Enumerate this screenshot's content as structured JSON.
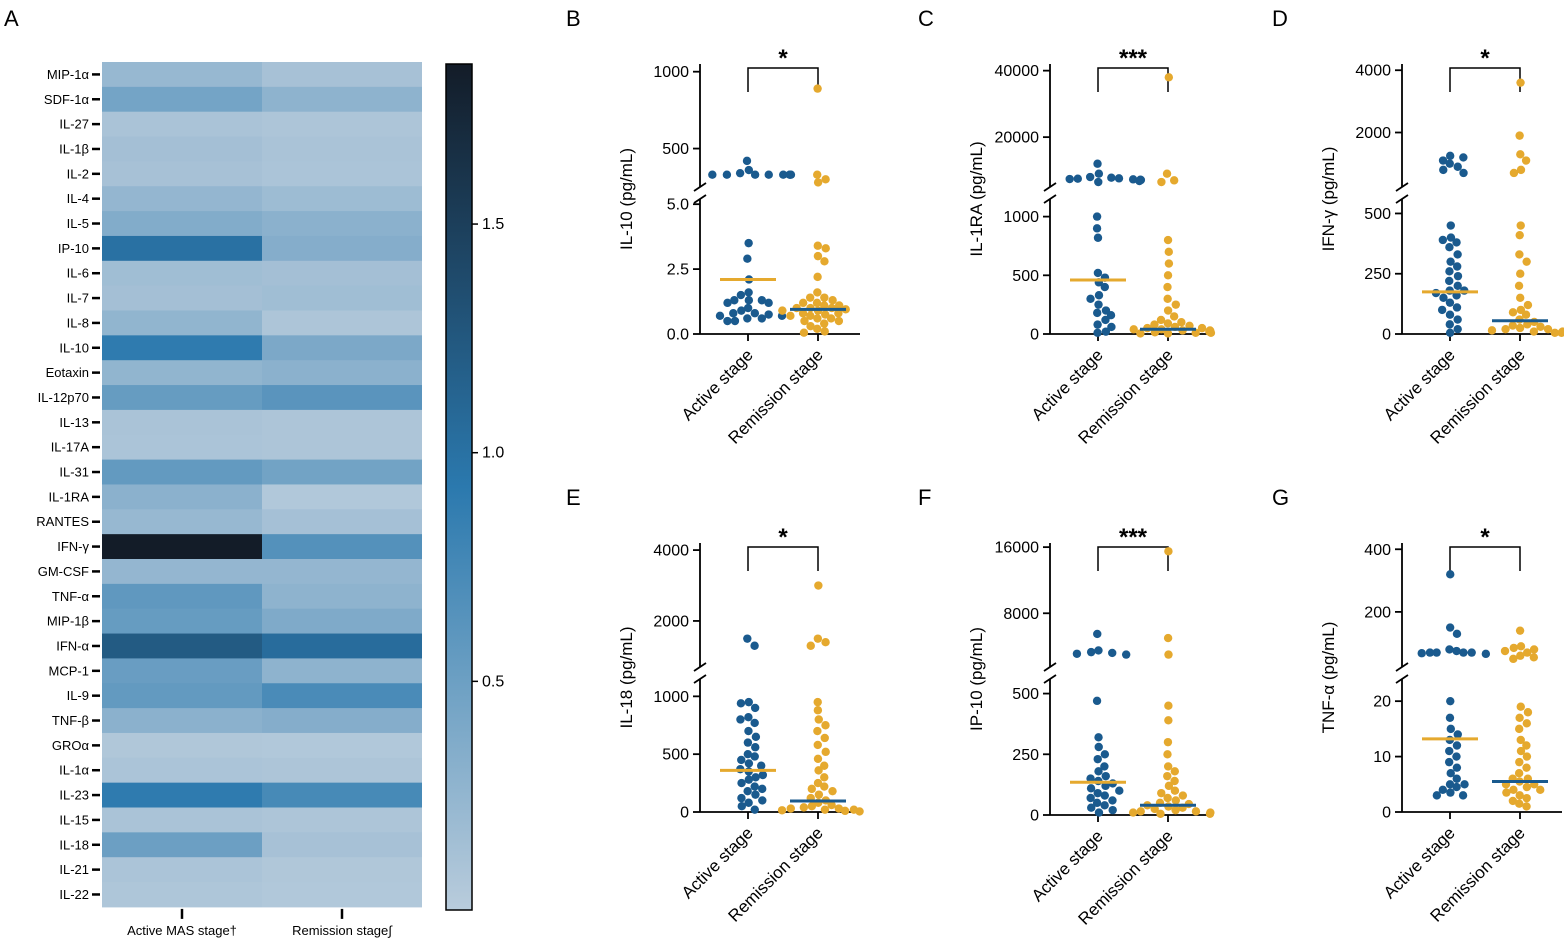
{
  "colors": {
    "active": "#1a5a8e",
    "remission": "#e5a92e",
    "heat_low": "#b9ccdc",
    "heat_mid": "#2b79ae",
    "heat_high": "#131c28"
  },
  "panel_a": {
    "label": "A",
    "chart_data": {
      "type": "heatmap",
      "rows": [
        "MIP-1α",
        "SDF-1α",
        "IL-27",
        "IL-1β",
        "IL-2",
        "IL-4",
        "IL-5",
        "IP-10",
        "IL-6",
        "IL-7",
        "IL-8",
        "IL-10",
        "Eotaxin",
        "IL-12p70",
        "IL-13",
        "IL-17A",
        "IL-31",
        "IL-1RA",
        "RANTES",
        "IFN-γ",
        "GM-CSF",
        "TNF-α",
        "MIP-1β",
        "IFN-α",
        "MCP-1",
        "IL-9",
        "TNF-β",
        "GROα",
        "IL-1α",
        "IL-23",
        "IL-15",
        "IL-18",
        "IL-21",
        "IL-22"
      ],
      "columns": [
        "Active MAS stage†",
        "Remission stage∫"
      ],
      "values": [
        [
          0.22,
          0.12
        ],
        [
          0.45,
          0.28
        ],
        [
          0.1,
          0.08
        ],
        [
          0.14,
          0.1
        ],
        [
          0.12,
          0.09
        ],
        [
          0.24,
          0.18
        ],
        [
          0.36,
          0.3
        ],
        [
          1.0,
          0.34
        ],
        [
          0.16,
          0.14
        ],
        [
          0.14,
          0.16
        ],
        [
          0.26,
          0.08
        ],
        [
          0.9,
          0.4
        ],
        [
          0.26,
          0.3
        ],
        [
          0.54,
          0.62
        ],
        [
          0.1,
          0.08
        ],
        [
          0.09,
          0.08
        ],
        [
          0.56,
          0.46
        ],
        [
          0.3,
          0.05
        ],
        [
          0.22,
          0.13
        ],
        [
          1.85,
          0.66
        ],
        [
          0.24,
          0.24
        ],
        [
          0.58,
          0.28
        ],
        [
          0.54,
          0.38
        ],
        [
          1.22,
          1.05
        ],
        [
          0.52,
          0.28
        ],
        [
          0.56,
          0.72
        ],
        [
          0.3,
          0.34
        ],
        [
          0.06,
          0.05
        ],
        [
          0.09,
          0.08
        ],
        [
          0.9,
          0.74
        ],
        [
          0.1,
          0.08
        ],
        [
          0.5,
          0.12
        ],
        [
          0.09,
          0.06
        ],
        [
          0.07,
          0.05
        ]
      ],
      "colorbar": {
        "range": [
          0.0,
          1.85
        ],
        "ticks": [
          0.5,
          1.0,
          1.5
        ],
        "tick_labels": [
          "0.5",
          "1.0",
          "1.5"
        ]
      }
    }
  },
  "panels": [
    {
      "label": "B",
      "chart_data": {
        "type": "scatter",
        "ylabel": "IL-10 (pg/mL)",
        "significance": "*",
        "x_labels": [
          "Active stage",
          "Remission stage"
        ],
        "y_segments": [
          {
            "min": 0,
            "max": 5.2,
            "ticks": [
              0,
              2.5,
              5.0
            ],
            "tick_labels": [
              "0.0",
              "2.5",
              "5.0"
            ]
          },
          {
            "min": 250,
            "max": 1050,
            "ticks": [
              500,
              1000
            ],
            "tick_labels": [
              "500",
              "1000"
            ]
          }
        ],
        "break_value": 5.2,
        "medians": [
          2.1,
          0.95
        ],
        "series": [
          {
            "name": "Active stage",
            "values": [
              420,
              360,
              340,
              330,
              330,
              330,
              330,
              330,
              330,
              330,
              330,
              3.5,
              2.9,
              2.1,
              1.6,
              1.5,
              1.3,
              1.3,
              1.3,
              1.2,
              1.2,
              1.0,
              0.9,
              0.8,
              0.8,
              0.75,
              0.7,
              0.7,
              0.6,
              0.6,
              0.5,
              0.5
            ]
          },
          {
            "name": "Remission stage",
            "values": [
              890,
              330,
              300,
              280,
              3.4,
              3.3,
              3.0,
              2.8,
              2.2,
              1.6,
              1.4,
              1.4,
              1.3,
              1.2,
              1.2,
              1.1,
              1.1,
              1.0,
              1.0,
              1.0,
              0.95,
              0.9,
              0.9,
              0.8,
              0.8,
              0.75,
              0.7,
              0.7,
              0.6,
              0.6,
              0.5,
              0.5,
              0.4,
              0.3,
              0.2,
              0.1,
              0.05
            ]
          }
        ]
      }
    },
    {
      "label": "C",
      "chart_data": {
        "type": "scatter",
        "ylabel": "IL-1RA (pg/mL)",
        "significance": "***",
        "x_labels": [
          "Active stage",
          "Remission stage"
        ],
        "y_segments": [
          {
            "min": 0,
            "max": 1150,
            "ticks": [
              0,
              500,
              1000
            ],
            "tick_labels": [
              "0",
              "500",
              "1000"
            ]
          },
          {
            "min": 5000,
            "max": 42000,
            "ticks": [
              20000,
              40000
            ],
            "tick_labels": [
              "20000",
              "40000"
            ]
          }
        ],
        "break_value": 1150,
        "medians": [
          460,
          40
        ],
        "series": [
          {
            "name": "Active stage",
            "values": [
              12000,
              9000,
              8000,
              7800,
              7600,
              7500,
              7400,
              7300,
              7200,
              7100,
              6800,
              6500,
              1000,
              900,
              820,
              520,
              480,
              440,
              400,
              330,
              300,
              250,
              200,
              180,
              160,
              120,
              80,
              60,
              20,
              10
            ]
          },
          {
            "name": "Remission stage",
            "values": [
              38000,
              9000,
              7000,
              6500,
              800,
              700,
              600,
              500,
              400,
              300,
              250,
              200,
              150,
              120,
              100,
              90,
              80,
              70,
              60,
              50,
              50,
              40,
              40,
              30,
              30,
              25,
              20,
              20,
              15,
              10,
              10,
              5,
              5
            ]
          }
        ]
      }
    },
    {
      "label": "D",
      "chart_data": {
        "type": "scatter",
        "ylabel": "IFN-γ (pg/mL)",
        "significance": "*",
        "x_labels": [
          "Active stage",
          "Remission stage"
        ],
        "y_segments": [
          {
            "min": 0,
            "max": 560,
            "ticks": [
              0,
              250,
              500
            ],
            "tick_labels": [
              "0",
              "250",
              "500"
            ]
          },
          {
            "min": 250,
            "max": 4200,
            "ticks": [
              2000,
              4000
            ],
            "tick_labels": [
              "2000",
              "4000"
            ]
          }
        ],
        "break_value": 560,
        "medians": [
          175,
          55
        ],
        "series": [
          {
            "name": "Active stage",
            "values": [
              1250,
              1200,
              1100,
              1000,
              900,
              800,
              700,
              450,
              400,
              390,
              380,
              360,
              330,
              300,
              280,
              260,
              240,
              220,
              200,
              180,
              180,
              170,
              160,
              150,
              130,
              110,
              100,
              80,
              60,
              40,
              20,
              5
            ]
          },
          {
            "name": "Remission stage",
            "values": [
              3600,
              1900,
              1300,
              1100,
              800,
              700,
              450,
              410,
              330,
              300,
              250,
              200,
              150,
              120,
              100,
              90,
              80,
              60,
              50,
              40,
              35,
              30,
              25,
              20,
              20,
              15,
              10,
              10,
              5,
              5
            ]
          }
        ]
      }
    },
    {
      "label": "E",
      "chart_data": {
        "type": "scatter",
        "ylabel": "IL-18 (pg/mL)",
        "significance": "*",
        "x_labels": [
          "Active stage",
          "Remission stage"
        ],
        "y_segments": [
          {
            "min": 0,
            "max": 1150,
            "ticks": [
              0,
              500,
              1000
            ],
            "tick_labels": [
              "0",
              "500",
              "1000"
            ]
          },
          {
            "min": 700,
            "max": 4200,
            "ticks": [
              2000,
              4000
            ],
            "tick_labels": [
              "2000",
              "4000"
            ]
          }
        ],
        "break_value": 1150,
        "medians": [
          360,
          95
        ],
        "series": [
          {
            "name": "Active stage",
            "values": [
              1500,
              1300,
              950,
              940,
              900,
              820,
              800,
              770,
              700,
              650,
              600,
              560,
              500,
              480,
              450,
              420,
              400,
              370,
              350,
              320,
              300,
              280,
              250,
              220,
              200,
              180,
              150,
              120,
              100,
              80,
              50,
              20
            ]
          },
          {
            "name": "Remission stage",
            "values": [
              3000,
              1500,
              1400,
              1300,
              950,
              880,
              800,
              750,
              700,
              640,
              580,
              520,
              460,
              400,
              360,
              300,
              250,
              220,
              200,
              180,
              150,
              120,
              100,
              80,
              60,
              50,
              40,
              30,
              30,
              20,
              20,
              15,
              10,
              5
            ]
          }
        ]
      }
    },
    {
      "label": "F",
      "chart_data": {
        "type": "scatter",
        "ylabel": "IP-10 (pg/mL)",
        "significance": "***",
        "x_labels": [
          "Active stage",
          "Remission stage"
        ],
        "y_segments": [
          {
            "min": 0,
            "max": 560,
            "ticks": [
              0,
              250,
              500
            ],
            "tick_labels": [
              "0",
              "250",
              "500"
            ]
          },
          {
            "min": 1500,
            "max": 16500,
            "ticks": [
              8000,
              16000
            ],
            "tick_labels": [
              "8000",
              "16000"
            ]
          }
        ],
        "break_value": 560,
        "medians": [
          135,
          40
        ],
        "series": [
          {
            "name": "Active stage",
            "values": [
              5500,
              3500,
              3300,
              3200,
              3100,
              3000,
              470,
              320,
              280,
              250,
              230,
              200,
              180,
              160,
              150,
              140,
              130,
              120,
              110,
              100,
              90,
              80,
              70,
              60,
              50,
              40,
              30,
              20,
              10
            ]
          },
          {
            "name": "Remission stage",
            "values": [
              15500,
              5000,
              3000,
              450,
              390,
              300,
              250,
              200,
              180,
              160,
              140,
              120,
              100,
              90,
              80,
              70,
              60,
              50,
              45,
              40,
              35,
              30,
              25,
              20,
              15,
              15,
              10,
              10,
              5,
              5
            ]
          }
        ]
      }
    },
    {
      "label": "G",
      "chart_data": {
        "type": "scatter",
        "ylabel": "TNF-α (pg/mL)",
        "significance": "*",
        "x_labels": [
          "Active stage",
          "Remission stage"
        ],
        "y_segments": [
          {
            "min": 0,
            "max": 24,
            "ticks": [
              0,
              10,
              20
            ],
            "tick_labels": [
              "0",
              "10",
              "20"
            ]
          },
          {
            "min": 24,
            "max": 420,
            "ticks": [
              200,
              400
            ],
            "tick_labels": [
              "200",
              "400"
            ]
          }
        ],
        "break_value": 24,
        "medians": [
          13.2,
          5.5
        ],
        "series": [
          {
            "name": "Active stage",
            "values": [
              320,
              150,
              130,
              80,
              75,
              70,
              70,
              70,
              70,
              68,
              66,
              20,
              17,
              15,
              14,
              13,
              12,
              11,
              10,
              9,
              8,
              7,
              6,
              5,
              5,
              4.5,
              4,
              3.5,
              3,
              3
            ]
          },
          {
            "name": "Remission stage",
            "values": [
              140,
              90,
              85,
              80,
              75,
              70,
              60,
              55,
              50,
              19,
              18,
              17,
              16,
              15,
              13,
              12,
              11,
              10,
              9,
              8,
              7,
              6,
              6,
              5.5,
              5,
              5,
              4.5,
              4,
              4,
              3.5,
              3,
              2.5,
              2,
              1.5,
              1
            ]
          }
        ]
      }
    }
  ]
}
